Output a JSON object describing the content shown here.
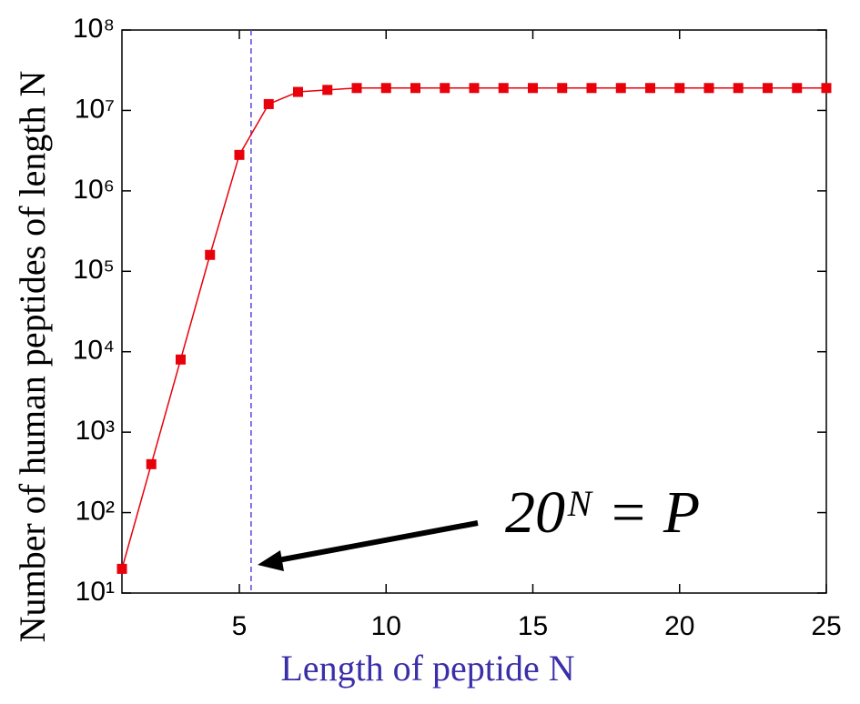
{
  "chart_data": {
    "type": "line",
    "x_label": "Length of peptide N",
    "y_label": "Number of human peptides of length N",
    "annotation": "20ᴺ = P",
    "x": [
      1,
      2,
      3,
      4,
      5,
      6,
      7,
      8,
      9,
      10,
      11,
      12,
      13,
      14,
      15,
      16,
      17,
      18,
      19,
      20,
      21,
      22,
      23,
      24,
      25
    ],
    "series": [
      {
        "name": "human peptides",
        "color": "#e8000b",
        "values": [
          20,
          400,
          8000,
          160000,
          2800000,
          12000000,
          17000000,
          18000000,
          19000000,
          19000000,
          19000000,
          19000000,
          19000000,
          19000000,
          19000000,
          19000000,
          19000000,
          19000000,
          19000000,
          19000000,
          19000000,
          19000000,
          19000000,
          19000000,
          19000000
        ]
      }
    ],
    "vline": 5.4,
    "vline_color": "#5544dd",
    "xlim": [
      1,
      25
    ],
    "xticks": [
      5,
      10,
      15,
      20,
      25
    ],
    "ylim": [
      10,
      100000000
    ],
    "yticks": [
      {
        "value": 10,
        "label": "10¹"
      },
      {
        "value": 100,
        "label": "10²"
      },
      {
        "value": 1000,
        "label": "10³"
      },
      {
        "value": 10000,
        "label": "10⁴"
      },
      {
        "value": 100000,
        "label": "10⁵"
      },
      {
        "value": 1000000,
        "label": "10⁶"
      },
      {
        "value": 10000000,
        "label": "10⁷"
      },
      {
        "value": 100000000,
        "label": "10⁸"
      }
    ],
    "log_y": true
  }
}
